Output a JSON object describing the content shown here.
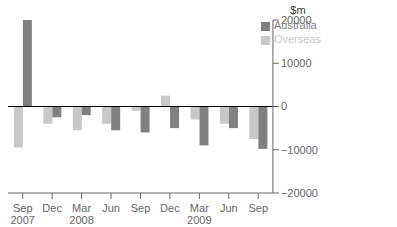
{
  "chart_data": {
    "type": "bar",
    "ylabel": "$m",
    "categories": [
      "Sep\n2007",
      "Dec",
      "Mar\n2008",
      "Jun",
      "Sep",
      "Dec",
      "Mar\n2009",
      "Jun",
      "Sep"
    ],
    "series": [
      {
        "name": "Overseas",
        "color": "#c8c8c8",
        "values": [
          -9500,
          -4000,
          -5500,
          -4000,
          -1000,
          2500,
          -3000,
          -4000,
          -7500
        ]
      },
      {
        "name": "Australia",
        "color": "#808080",
        "values": [
          20000,
          -2500,
          -2000,
          -5500,
          -6000,
          -5000,
          -9000,
          -5000,
          -9800
        ]
      }
    ],
    "ylim": [
      -20000,
      20000
    ],
    "yticks": [
      {
        "value": -20000,
        "label": "−20000"
      },
      {
        "value": -10000,
        "label": "−10000"
      },
      0,
      10000,
      20000
    ],
    "grid": false,
    "legend": "upper right"
  }
}
